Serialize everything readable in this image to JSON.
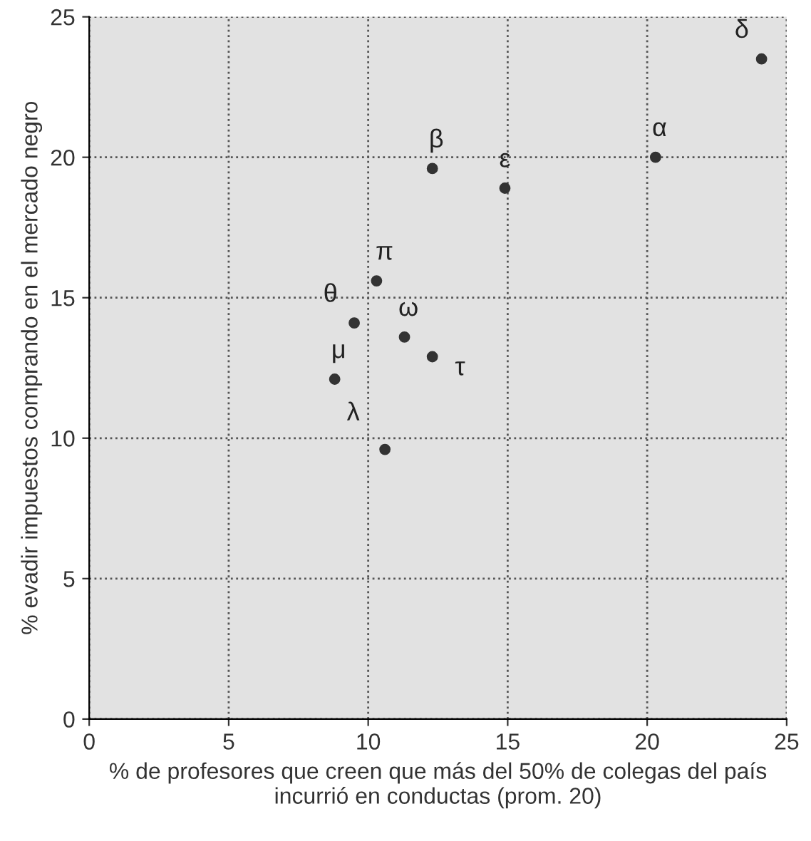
{
  "chart_data": {
    "type": "scatter",
    "xlabel": "% de profesores que creen que más del 50% de colegas del país\nincurrió en conductas (prom. 20)",
    "ylabel": "% evadir impuestos comprando en el mercado negro",
    "x": [
      24.1,
      20.3,
      12.3,
      14.9,
      10.3,
      9.5,
      11.3,
      12.3,
      8.8,
      10.6
    ],
    "values": [
      23.5,
      20.0,
      19.6,
      18.9,
      15.6,
      14.1,
      13.6,
      12.9,
      12.1,
      9.6
    ],
    "color": "#333333",
    "marker": "circle",
    "xlim": [
      0,
      25
    ],
    "ylim": [
      0,
      25
    ],
    "xticks": [
      0,
      5,
      10,
      15,
      20,
      25
    ],
    "yticks": [
      0,
      5,
      10,
      15,
      20,
      25
    ],
    "grid": true,
    "annotations": [
      {
        "text": "δ",
        "x": 24.1,
        "y": 23.5
      },
      {
        "text": "α",
        "x": 20.3,
        "y": 20.0
      },
      {
        "text": "β",
        "x": 12.3,
        "y": 19.6
      },
      {
        "text": "ε",
        "x": 14.9,
        "y": 18.9
      },
      {
        "text": "π",
        "x": 10.3,
        "y": 15.6
      },
      {
        "text": "θ",
        "x": 9.5,
        "y": 14.1
      },
      {
        "text": "ω",
        "x": 11.3,
        "y": 13.6
      },
      {
        "text": "τ",
        "x": 12.3,
        "y": 12.9
      },
      {
        "text": "μ",
        "x": 8.8,
        "y": 12.1
      },
      {
        "text": "λ",
        "x": 10.6,
        "y": 9.6
      }
    ]
  }
}
